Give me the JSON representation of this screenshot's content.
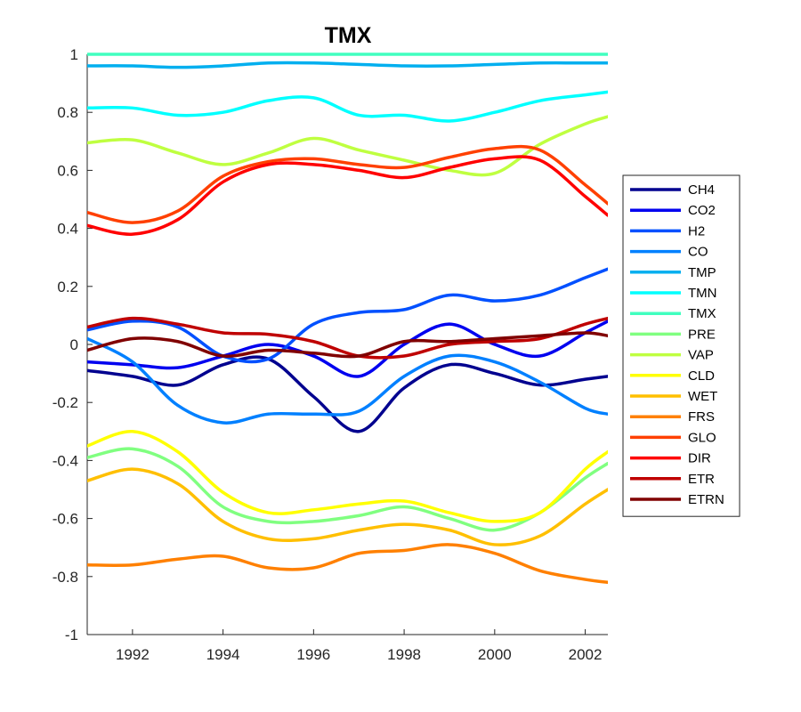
{
  "chart_data": {
    "type": "line",
    "title": "TMX",
    "xlabel": "",
    "ylabel": "",
    "xlim": [
      1991,
      2002.5
    ],
    "ylim": [
      -1,
      1
    ],
    "grid": false,
    "legend_position": "right",
    "x_ticks": [
      1992,
      1994,
      1996,
      1998,
      2000,
      2002
    ],
    "y_ticks": [
      1,
      0.8,
      0.6,
      0.4,
      0.2,
      0,
      -0.2,
      -0.4,
      -0.6,
      -0.8,
      -1
    ],
    "x_tick_labels": [
      "1992",
      "1994",
      "1996",
      "1998",
      "2000",
      "2002"
    ],
    "y_tick_labels": [
      "1",
      "0.8",
      "0.6",
      "0.4",
      "0.2",
      "0",
      "-0.2",
      "-0.4",
      "-0.6",
      "-0.8",
      "-1"
    ],
    "x": [
      1991,
      1992,
      1993,
      1994,
      1995,
      1996,
      1997,
      1998,
      1999,
      2000,
      2001,
      2002,
      2002.5
    ],
    "series": [
      {
        "name": "CH4",
        "color": "#00008F",
        "values": [
          -0.09,
          -0.11,
          -0.14,
          -0.07,
          -0.05,
          -0.18,
          -0.3,
          -0.15,
          -0.07,
          -0.1,
          -0.14,
          -0.12,
          -0.11
        ]
      },
      {
        "name": "CO2",
        "color": "#0000EF",
        "values": [
          -0.06,
          -0.07,
          -0.08,
          -0.04,
          0.0,
          -0.04,
          -0.11,
          0.0,
          0.07,
          0.0,
          -0.04,
          0.04,
          0.08
        ]
      },
      {
        "name": "H2",
        "color": "#0050FF",
        "values": [
          0.05,
          0.08,
          0.06,
          -0.04,
          -0.05,
          0.07,
          0.11,
          0.12,
          0.17,
          0.15,
          0.17,
          0.23,
          0.26
        ]
      },
      {
        "name": "CO",
        "color": "#0080FF",
        "values": [
          0.02,
          -0.06,
          -0.21,
          -0.27,
          -0.24,
          -0.24,
          -0.23,
          -0.11,
          -0.04,
          -0.06,
          -0.13,
          -0.22,
          -0.24
        ]
      },
      {
        "name": "TMP",
        "color": "#00AFEF",
        "values": [
          0.96,
          0.96,
          0.955,
          0.96,
          0.97,
          0.97,
          0.965,
          0.96,
          0.96,
          0.965,
          0.97,
          0.97,
          0.97
        ]
      },
      {
        "name": "TMN",
        "color": "#00FFFF",
        "values": [
          0.815,
          0.815,
          0.79,
          0.8,
          0.84,
          0.85,
          0.79,
          0.79,
          0.77,
          0.8,
          0.84,
          0.86,
          0.87
        ]
      },
      {
        "name": "TMX",
        "color": "#40FFBF",
        "values": [
          1.0,
          1.0,
          1.0,
          1.0,
          1.0,
          1.0,
          1.0,
          1.0,
          1.0,
          1.0,
          1.0,
          1.0,
          1.0
        ]
      },
      {
        "name": "PRE",
        "color": "#80FF80",
        "values": [
          -0.39,
          -0.36,
          -0.42,
          -0.56,
          -0.61,
          -0.61,
          -0.59,
          -0.56,
          -0.6,
          -0.64,
          -0.58,
          -0.46,
          -0.41
        ]
      },
      {
        "name": "VAP",
        "color": "#BFFF40",
        "values": [
          0.695,
          0.705,
          0.66,
          0.62,
          0.66,
          0.71,
          0.67,
          0.635,
          0.6,
          0.59,
          0.69,
          0.76,
          0.785
        ]
      },
      {
        "name": "CLD",
        "color": "#FFFF00",
        "values": [
          -0.35,
          -0.3,
          -0.37,
          -0.51,
          -0.58,
          -0.57,
          -0.55,
          -0.54,
          -0.58,
          -0.61,
          -0.58,
          -0.43,
          -0.37
        ]
      },
      {
        "name": "WET",
        "color": "#FFBF00",
        "values": [
          -0.47,
          -0.43,
          -0.48,
          -0.61,
          -0.67,
          -0.67,
          -0.64,
          -0.62,
          -0.64,
          -0.69,
          -0.66,
          -0.55,
          -0.5
        ]
      },
      {
        "name": "FRS",
        "color": "#FF8000",
        "values": [
          -0.76,
          -0.76,
          -0.74,
          -0.73,
          -0.77,
          -0.77,
          -0.72,
          -0.71,
          -0.69,
          -0.72,
          -0.78,
          -0.81,
          -0.82
        ]
      },
      {
        "name": "GLO",
        "color": "#FF4000",
        "values": [
          0.455,
          0.42,
          0.46,
          0.58,
          0.63,
          0.64,
          0.62,
          0.61,
          0.645,
          0.675,
          0.67,
          0.55,
          0.485
        ]
      },
      {
        "name": "DIR",
        "color": "#FF0000",
        "values": [
          0.41,
          0.38,
          0.43,
          0.56,
          0.62,
          0.62,
          0.6,
          0.575,
          0.61,
          0.64,
          0.635,
          0.51,
          0.445
        ]
      },
      {
        "name": "ETR",
        "color": "#BF0000",
        "values": [
          0.06,
          0.09,
          0.07,
          0.04,
          0.035,
          0.01,
          -0.04,
          -0.04,
          0.0,
          0.01,
          0.02,
          0.07,
          0.09
        ]
      },
      {
        "name": "ETRN",
        "color": "#800000",
        "values": [
          -0.02,
          0.02,
          0.01,
          -0.04,
          -0.02,
          -0.03,
          -0.04,
          0.01,
          0.01,
          0.02,
          0.03,
          0.04,
          0.03
        ]
      }
    ]
  }
}
